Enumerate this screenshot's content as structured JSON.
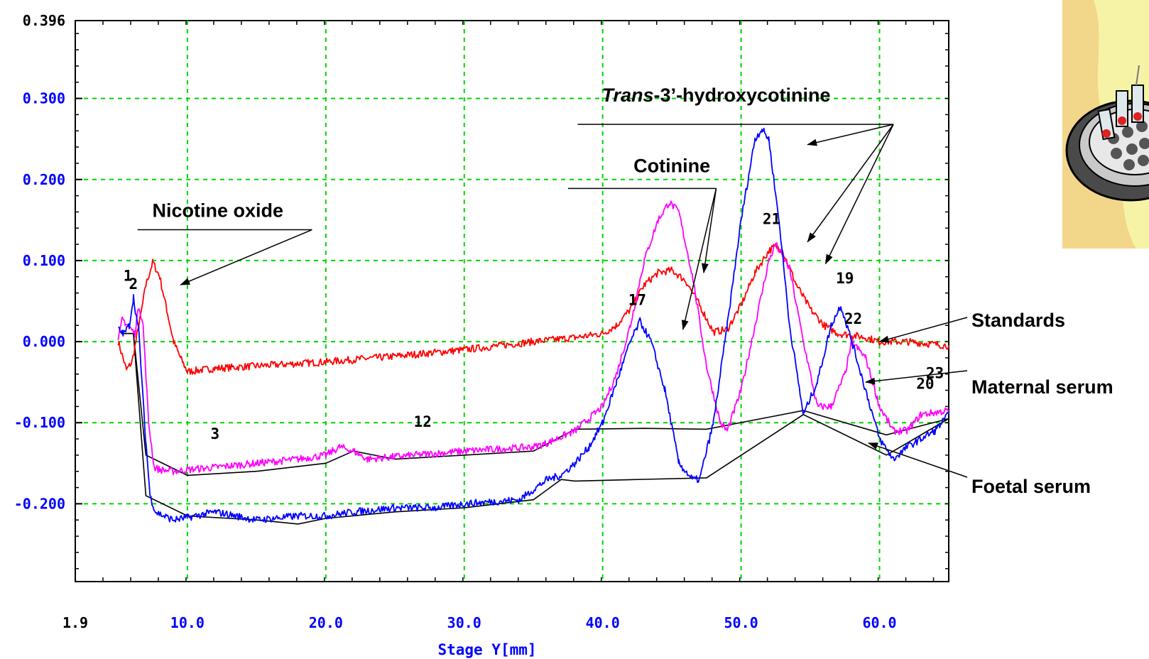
{
  "chart_data": {
    "type": "line",
    "title": "",
    "xlabel": "Stage Y[mm]",
    "ylabel": "",
    "xlim": [
      1.9,
      65.0
    ],
    "ylim": [
      -0.296,
      0.396
    ],
    "x_ticks": [
      "1.9",
      "10.0",
      "20.0",
      "30.0",
      "40.0",
      "50.0",
      "60.0"
    ],
    "y_ticks": [
      "0.396",
      "0.300",
      "0.200",
      "0.100",
      "0.000",
      "-0.100",
      "-0.200"
    ],
    "grid": true,
    "series": [
      {
        "name": "Standards",
        "color": "#ff0000",
        "x": [
          5.0,
          5.6,
          6.0,
          6.5,
          7.0,
          7.5,
          8.0,
          8.5,
          9.0,
          9.5,
          10.0,
          12,
          15,
          20,
          25,
          30,
          35,
          38,
          40,
          41,
          42,
          43,
          44,
          45,
          46,
          47,
          48,
          49,
          50,
          51,
          52,
          52.5,
          53,
          54,
          55,
          56,
          57,
          58,
          59,
          60,
          62,
          65
        ],
        "y": [
          0.0,
          -0.035,
          -0.025,
          0.02,
          0.07,
          0.098,
          0.08,
          0.04,
          0.0,
          -0.02,
          -0.037,
          -0.033,
          -0.03,
          -0.025,
          -0.018,
          -0.01,
          0.0,
          0.005,
          0.01,
          0.02,
          0.04,
          0.07,
          0.085,
          0.088,
          0.075,
          0.045,
          0.012,
          0.015,
          0.045,
          0.085,
          0.112,
          0.118,
          0.112,
          0.07,
          0.04,
          0.02,
          0.01,
          0.008,
          0.005,
          0.0,
          0.0,
          -0.005
        ]
      },
      {
        "name": "Maternal serum",
        "color": "#ff00ff",
        "x": [
          5.0,
          5.3,
          5.7,
          6.2,
          6.5,
          6.8,
          7.2,
          7.6,
          8.0,
          9.0,
          10.0,
          12,
          15,
          18,
          20,
          21,
          22,
          23,
          25,
          30,
          35,
          36,
          38,
          40,
          41,
          42,
          43,
          44,
          44.8,
          45.5,
          46.5,
          47.5,
          48.5,
          49,
          50,
          51,
          52,
          52.5,
          53.5,
          54.5,
          55.5,
          56.5,
          57.5,
          58,
          59,
          60,
          61,
          62,
          63,
          65
        ],
        "y": [
          0.0,
          0.028,
          0.02,
          0.01,
          0.045,
          0.02,
          -0.1,
          -0.155,
          -0.158,
          -0.16,
          -0.158,
          -0.155,
          -0.15,
          -0.145,
          -0.14,
          -0.13,
          -0.135,
          -0.145,
          -0.142,
          -0.135,
          -0.13,
          -0.125,
          -0.11,
          -0.08,
          -0.04,
          0.02,
          0.1,
          0.15,
          0.172,
          0.16,
          0.08,
          -0.03,
          -0.1,
          -0.11,
          -0.06,
          0.02,
          0.1,
          0.12,
          0.09,
          0.0,
          -0.08,
          -0.08,
          -0.04,
          0.0,
          -0.02,
          -0.08,
          -0.11,
          -0.11,
          -0.09,
          -0.085
        ]
      },
      {
        "name": "Foetal serum",
        "color": "#0000ff",
        "x": [
          5.0,
          5.4,
          5.8,
          6.1,
          6.5,
          6.9,
          7.3,
          7.7,
          8.3,
          9.0,
          10.0,
          12,
          15,
          18,
          20,
          22,
          25,
          28,
          30,
          34,
          36,
          37,
          38,
          39,
          40,
          41,
          42,
          42.7,
          43.5,
          44.5,
          45.5,
          46.5,
          47,
          48,
          49,
          50,
          51,
          51.5,
          52,
          52.8,
          53.5,
          54.5,
          55.5,
          56.5,
          57.2,
          58,
          59,
          60,
          61,
          62,
          63,
          64,
          65
        ],
        "y": [
          0.015,
          0.01,
          0.02,
          0.055,
          0.01,
          -0.1,
          -0.19,
          -0.21,
          -0.215,
          -0.22,
          -0.217,
          -0.21,
          -0.22,
          -0.215,
          -0.215,
          -0.21,
          -0.205,
          -0.205,
          -0.2,
          -0.195,
          -0.17,
          -0.165,
          -0.15,
          -0.13,
          -0.1,
          -0.05,
          0.0,
          0.025,
          0.0,
          -0.06,
          -0.15,
          -0.17,
          -0.17,
          -0.1,
          0.02,
          0.15,
          0.25,
          0.262,
          0.25,
          0.14,
          0.02,
          -0.09,
          -0.05,
          0.02,
          0.045,
          0.0,
          -0.06,
          -0.12,
          -0.145,
          -0.13,
          -0.12,
          -0.11,
          -0.09
        ]
      }
    ],
    "baselines": [
      {
        "color": "#000000",
        "x": [
          5.2,
          6.1,
          7.0,
          10.0,
          15,
          20,
          22,
          25,
          30,
          35,
          38,
          43,
          47.5,
          54.5,
          60.5,
          65
        ],
        "y": [
          0.01,
          0.01,
          -0.14,
          -0.165,
          -0.16,
          -0.15,
          -0.135,
          -0.145,
          -0.14,
          -0.135,
          -0.108,
          -0.107,
          -0.108,
          -0.085,
          -0.115,
          -0.095
        ]
      },
      {
        "color": "#000000",
        "x": [
          5.2,
          6.1,
          7.0,
          10.0,
          15,
          18,
          20,
          25,
          30,
          35,
          37,
          38,
          47.5,
          54.5,
          60.5,
          65
        ],
        "y": [
          0.01,
          0.01,
          -0.19,
          -0.215,
          -0.22,
          -0.225,
          -0.218,
          -0.21,
          -0.205,
          -0.195,
          -0.17,
          -0.172,
          -0.168,
          -0.09,
          -0.14,
          -0.095
        ]
      }
    ],
    "peak_labels": [
      {
        "text": "1",
        "x": 5.7,
        "y": 0.075
      },
      {
        "text": "2",
        "x": 6.1,
        "y": 0.065
      },
      {
        "text": "3",
        "x": 12.0,
        "y": -0.12
      },
      {
        "text": "12",
        "x": 27.0,
        "y": -0.105
      },
      {
        "text": "17",
        "x": 42.5,
        "y": 0.045
      },
      {
        "text": "21",
        "x": 52.2,
        "y": 0.145
      },
      {
        "text": "19",
        "x": 57.5,
        "y": 0.072
      },
      {
        "text": "22",
        "x": 58.1,
        "y": 0.022
      },
      {
        "text": "23",
        "x": 64.0,
        "y": -0.045
      },
      {
        "text": "20",
        "x": 63.3,
        "y": -0.058
      }
    ],
    "annotations": [
      {
        "text": "Nicotine oxide",
        "text_x": 12.2,
        "text_y": 0.154,
        "underline": [
          6.4,
          19.0,
          0.138
        ],
        "arrows": [
          [
            19.0,
            0.138,
            9.5,
            0.07
          ]
        ]
      },
      {
        "text": "Cotinine",
        "text_x": 45.0,
        "text_y": 0.209,
        "underline": [
          37.5,
          48.2,
          0.189
        ],
        "arrows": [
          [
            48.2,
            0.189,
            47.3,
            0.085
          ],
          [
            48.2,
            0.189,
            45.8,
            0.015
          ]
        ]
      },
      {
        "text": "Trans-3’-hydroxycotinine",
        "text_x": 48.2,
        "text_y": 0.296,
        "underline": [
          38.2,
          61.0,
          0.268
        ],
        "arrows": [
          [
            61.0,
            0.268,
            54.8,
            0.243
          ],
          [
            61.0,
            0.268,
            54.8,
            0.123
          ],
          [
            61.0,
            0.268,
            56.1,
            0.096
          ]
        ]
      }
    ],
    "legend": [
      {
        "label": "Standards",
        "arrow_to": [
          60.0,
          0.0
        ]
      },
      {
        "label": "Maternal serum",
        "arrow_to": [
          59.0,
          -0.05
        ]
      },
      {
        "label": "Foetal serum",
        "arrow_to": [
          59.2,
          -0.125
        ]
      }
    ]
  },
  "annotation_texts": {
    "nicotine_oxide": "Nicotine oxide",
    "cotinine": "Cotinine",
    "trans_italic": "Trans",
    "trans_rest": "-3’-hydroxycotinine"
  },
  "legend_labels": {
    "standards": "Standards",
    "maternal": "Maternal serum",
    "foetal": "Foetal serum"
  },
  "picture": {
    "icon": "well-plate-icon"
  }
}
